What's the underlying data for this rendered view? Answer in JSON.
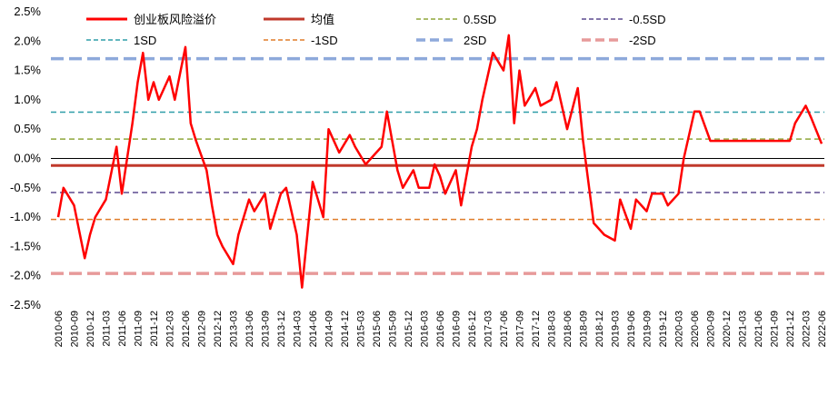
{
  "chart_data": {
    "type": "line",
    "ylim": [
      -2.5,
      2.5
    ],
    "y_ticks": [
      2.5,
      2.0,
      1.5,
      1.0,
      0.5,
      0.0,
      -0.5,
      -1.0,
      -1.5,
      -2.0,
      -2.5
    ],
    "y_tick_labels": [
      "2.5%",
      "2.0%",
      "1.5%",
      "1.0%",
      "0.5%",
      "0.0%",
      "-0.5%",
      "-1.0%",
      "-1.5%",
      "-2.0%",
      "-2.5%"
    ],
    "x_tick_labels": [
      "2010-06",
      "2010-09",
      "2010-12",
      "2011-03",
      "2011-06",
      "2011-09",
      "2011-12",
      "2012-03",
      "2012-06",
      "2012-09",
      "2012-12",
      "2013-03",
      "2013-06",
      "2013-09",
      "2013-12",
      "2014-03",
      "2014-06",
      "2014-09",
      "2014-12",
      "2015-03",
      "2015-06",
      "2015-09",
      "2015-12",
      "2016-03",
      "2016-06",
      "2016-09",
      "2016-12",
      "2017-03",
      "2017-06",
      "2017-09",
      "2017-12",
      "2018-03",
      "2018-06",
      "2018-09",
      "2018-12",
      "2019-03",
      "2019-06",
      "2019-09",
      "2019-12",
      "2020-03",
      "2020-06",
      "2020-09",
      "2020-12",
      "2021-03",
      "2021-06",
      "2021-09",
      "2021-12",
      "2022-03",
      "2022-06"
    ],
    "grid": false,
    "legend_position": "top",
    "series": [
      {
        "name": "创业板风险溢价",
        "color": "#ff0000",
        "style": "solid",
        "x": [
          "2010-06",
          "2010-07",
          "2010-09",
          "2010-11",
          "2010-12",
          "2011-01",
          "2011-03",
          "2011-05",
          "2011-06",
          "2011-08",
          "2011-09",
          "2011-10",
          "2011-11",
          "2011-12",
          "2012-01",
          "2012-03",
          "2012-04",
          "2012-06",
          "2012-07",
          "2012-08",
          "2012-10",
          "2012-11",
          "2012-12",
          "2013-01",
          "2013-03",
          "2013-04",
          "2013-06",
          "2013-07",
          "2013-09",
          "2013-10",
          "2013-12",
          "2014-01",
          "2014-03",
          "2014-04",
          "2014-06",
          "2014-08",
          "2014-09",
          "2014-11",
          "2015-01",
          "2015-02",
          "2015-04",
          "2015-06",
          "2015-07",
          "2015-08",
          "2015-10",
          "2015-11",
          "2016-01",
          "2016-02",
          "2016-04",
          "2016-05",
          "2016-06",
          "2016-07",
          "2016-09",
          "2016-10",
          "2016-12",
          "2017-01",
          "2017-02",
          "2017-04",
          "2017-06",
          "2017-07",
          "2017-08",
          "2017-09",
          "2017-10",
          "2017-12",
          "2018-01",
          "2018-03",
          "2018-04",
          "2018-06",
          "2018-08",
          "2018-09",
          "2018-11",
          "2018-12",
          "2019-01",
          "2019-03",
          "2019-04",
          "2019-06",
          "2019-07",
          "2019-09",
          "2019-10",
          "2019-12",
          "2020-01",
          "2020-03",
          "2020-04",
          "2020-06",
          "2020-07",
          "2020-09",
          "2020-10",
          "2020-12",
          "2021-01",
          "2021-03",
          "2021-04",
          "2021-06",
          "2021-07",
          "2021-09",
          "2021-10",
          "2021-12",
          "2022-01",
          "2022-03",
          "2022-04",
          "2022-06"
        ],
        "y": [
          -1.0,
          -0.5,
          -0.8,
          -1.7,
          -1.3,
          -1.0,
          -0.7,
          0.2,
          -0.6,
          0.6,
          1.3,
          1.8,
          1.0,
          1.3,
          1.0,
          1.4,
          1.0,
          1.9,
          0.6,
          0.3,
          -0.2,
          -0.8,
          -1.3,
          -1.5,
          -1.8,
          -1.3,
          -0.7,
          -0.9,
          -0.6,
          -1.2,
          -0.6,
          -0.5,
          -1.3,
          -2.2,
          -0.4,
          -1.0,
          0.5,
          0.1,
          0.4,
          0.2,
          -0.1,
          0.1,
          0.2,
          0.8,
          -0.2,
          -0.5,
          -0.2,
          -0.5,
          -0.5,
          -0.1,
          -0.3,
          -0.6,
          -0.2,
          -0.8,
          0.2,
          0.5,
          1.0,
          1.8,
          1.5,
          2.1,
          0.6,
          1.5,
          0.9,
          1.2,
          0.9,
          1.0,
          1.3,
          0.5,
          1.2,
          0.3,
          -1.1,
          -1.2,
          -1.3,
          -1.4,
          -0.7,
          -1.2,
          -0.7,
          -0.9,
          -0.6,
          -0.6,
          -0.8,
          -0.6,
          0.0,
          0.8,
          0.8,
          0.3,
          0.3,
          0.3,
          0.3,
          0.3,
          0.3,
          0.3,
          0.3,
          0.3,
          0.3,
          0.3,
          0.6,
          0.9,
          0.7,
          0.25
        ]
      },
      {
        "name": "均值",
        "color": "#c0392b",
        "style": "solid",
        "value": -0.12
      },
      {
        "name": "0.5SD",
        "color": "#8fa63a",
        "style": "dashed",
        "value": 0.33
      },
      {
        "name": "-0.5SD",
        "color": "#5b4a8f",
        "style": "dashed",
        "value": -0.58
      },
      {
        "name": "1SD",
        "color": "#2e9ea8",
        "style": "dashed",
        "value": 0.79
      },
      {
        "name": "-1SD",
        "color": "#e07b28",
        "style": "dashed",
        "value": -1.04
      },
      {
        "name": "2SD",
        "color": "#8ea9db",
        "style": "dashed",
        "value": 1.7
      },
      {
        "name": "-2SD",
        "color": "#e79a9a",
        "style": "dashed",
        "value": -1.96
      }
    ],
    "zero_line": 0
  }
}
